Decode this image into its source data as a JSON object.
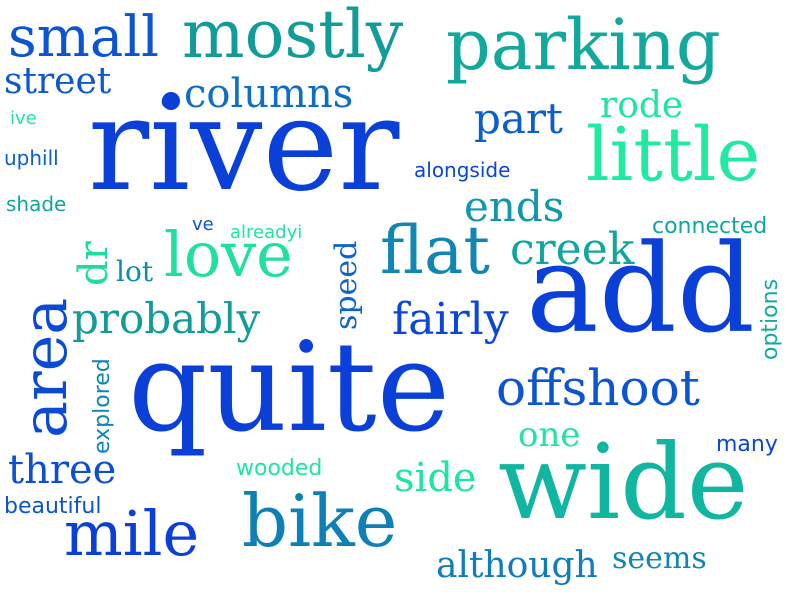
{
  "words": [
    {
      "text": "river",
      "color": "#0a3fd8"
    },
    {
      "text": "quite",
      "color": "#0a3fd8"
    },
    {
      "text": "add",
      "color": "#0a3fd8"
    },
    {
      "text": "wide",
      "color": "#10b6a0"
    },
    {
      "text": "parking",
      "color": "#12a89c"
    },
    {
      "text": "mostly",
      "color": "#119c9a"
    },
    {
      "text": "little",
      "color": "#1eeaa0"
    },
    {
      "text": "small",
      "color": "#0b55d2"
    },
    {
      "text": "bike",
      "color": "#0f80b6"
    },
    {
      "text": "flat",
      "color": "#0f86b4"
    },
    {
      "text": "love",
      "color": "#1fe0a0"
    },
    {
      "text": "area",
      "color": "#0a4bd6"
    },
    {
      "text": "mile",
      "color": "#0b3fd8"
    },
    {
      "text": "offshoot",
      "color": "#0b55d2"
    },
    {
      "text": "probably",
      "color": "#119c9a"
    },
    {
      "text": "columns",
      "color": "#0d6ec4"
    },
    {
      "text": "street",
      "color": "#0b58d0"
    },
    {
      "text": "three",
      "color": "#0b4fd4"
    },
    {
      "text": "creek",
      "color": "#10a6a0"
    },
    {
      "text": "fairly",
      "color": "#0a46d8"
    },
    {
      "text": "ends",
      "color": "#0f98ac"
    },
    {
      "text": "part",
      "color": "#0b5fcc"
    },
    {
      "text": "rode",
      "color": "#1ee69e"
    },
    {
      "text": "one",
      "color": "#1ee69e"
    },
    {
      "text": "side",
      "color": "#1ee69e"
    },
    {
      "text": "although",
      "color": "#0f7cbc"
    },
    {
      "text": "seems",
      "color": "#0f86b4"
    },
    {
      "text": "speed",
      "color": "#0b64c8"
    },
    {
      "text": "dr",
      "color": "#1edc9e"
    },
    {
      "text": "lot",
      "color": "#0f8ab0"
    },
    {
      "text": "explored",
      "color": "#0f86b4"
    },
    {
      "text": "options",
      "color": "#10ac9e"
    },
    {
      "text": "connected",
      "color": "#10a6a0"
    },
    {
      "text": "alongside",
      "color": "#0a46d8"
    },
    {
      "text": "uphill",
      "color": "#0b5fcc"
    },
    {
      "text": "shade",
      "color": "#10a69e"
    },
    {
      "text": "wooded",
      "color": "#1ee69e"
    },
    {
      "text": "many",
      "color": "#0a46d8"
    },
    {
      "text": "beautiful",
      "color": "#0b55d2"
    },
    {
      "text": "ive",
      "color": "#1ee69e"
    },
    {
      "text": "ve",
      "color": "#0b55d2"
    },
    {
      "text": "alreadyi",
      "color": "#1ee69e"
    }
  ],
  "dot_color": "#0a3fd8"
}
